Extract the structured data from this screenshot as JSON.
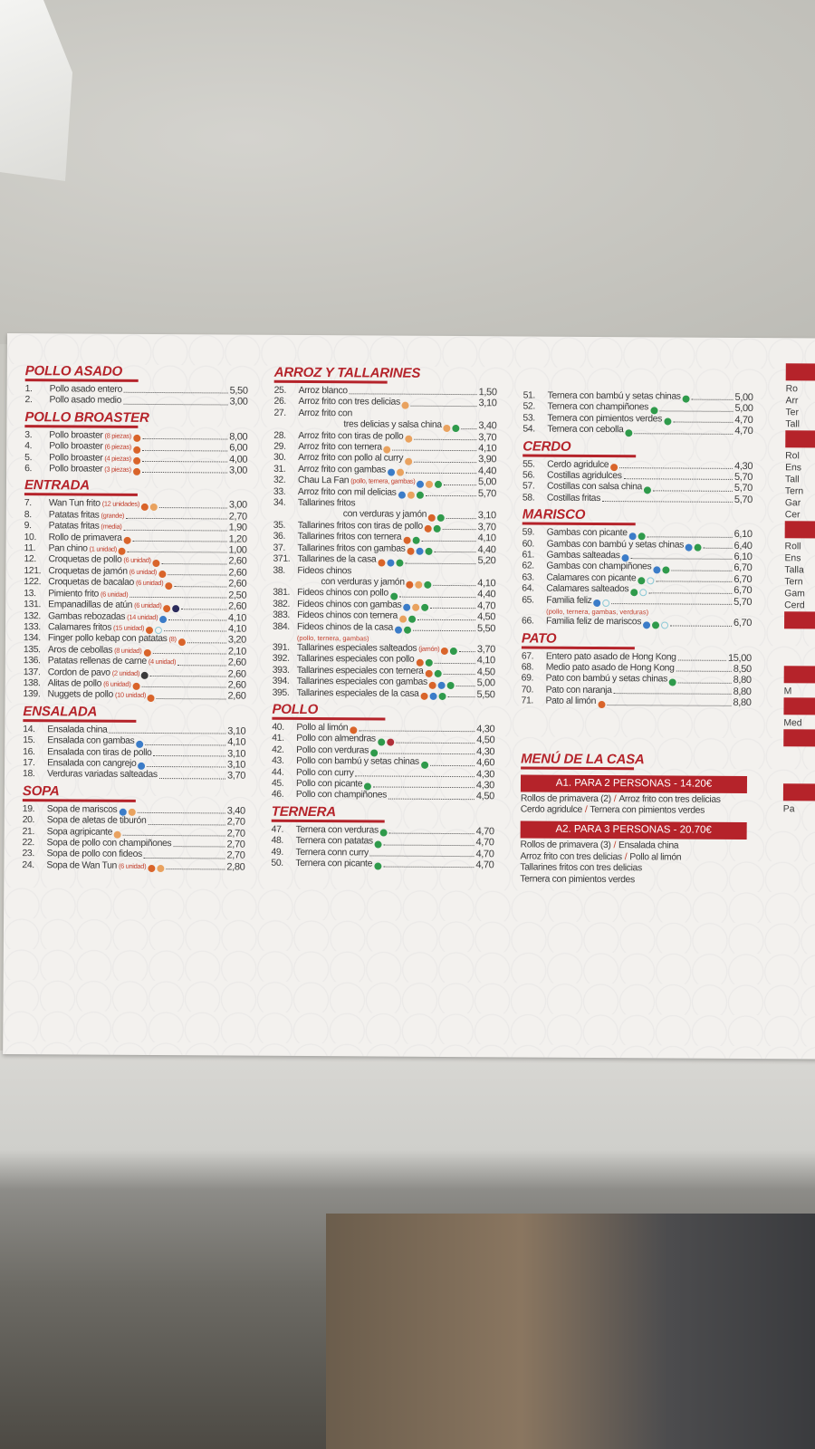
{
  "icon_colors": {
    "o": "#d9642a",
    "p": "#e9a25f",
    "g": "#2f9a4b",
    "b": "#3b7cc8",
    "l": "#8cc9d6",
    "d": "#2c2c5c",
    "r": "#b0303a",
    "k": "#3a3a3a"
  },
  "icon_names": {
    "o": "fried-icon",
    "p": "egg-icon",
    "g": "soy-icon",
    "b": "shellfish-icon",
    "l": "mollusc-icon",
    "d": "fish-icon",
    "r": "nuts-icon",
    "k": "mustard-icon"
  },
  "columns": [
    [
      {
        "title": "POLLO ASADO",
        "items": [
          {
            "num": "1.",
            "name": "Pollo asado entero",
            "price": "5,50"
          },
          {
            "num": "2.",
            "name": "Pollo asado medio",
            "price": "3,00"
          }
        ]
      },
      {
        "title": "POLLO BROASTER",
        "items": [
          {
            "num": "3.",
            "name": "Pollo broaster",
            "note": "(8 piezas)",
            "icons": [
              "o"
            ],
            "price": "8,00"
          },
          {
            "num": "4.",
            "name": "Pollo broaster",
            "note": "(6 piezas)",
            "icons": [
              "o"
            ],
            "price": "6,00"
          },
          {
            "num": "5.",
            "name": "Pollo broaster",
            "note": "(4 piezas)",
            "icons": [
              "o"
            ],
            "price": "4,00"
          },
          {
            "num": "6.",
            "name": "Pollo broaster",
            "note": "(3 piezas)",
            "icons": [
              "o"
            ],
            "price": "3,00"
          }
        ]
      },
      {
        "title": "ENTRADA",
        "items": [
          {
            "num": "7.",
            "name": "Wan Tun frito",
            "note": "(12 unidades)",
            "icons": [
              "o",
              "p"
            ],
            "price": "3,00"
          },
          {
            "num": "8.",
            "name": "Patatas fritas",
            "note": "(grande)",
            "price": "2,70"
          },
          {
            "num": "9.",
            "name": "Patatas fritas",
            "note": "(media)",
            "price": "1,90"
          },
          {
            "num": "10.",
            "name": "Rollo de primavera",
            "icons": [
              "o"
            ],
            "price": "1,20"
          },
          {
            "num": "11.",
            "name": "Pan chino",
            "note": "(1 unidad)",
            "icons": [
              "o"
            ],
            "price": "1,00"
          },
          {
            "num": "12.",
            "name": "Croquetas de pollo",
            "note": "(6 unidad)",
            "icons": [
              "o"
            ],
            "price": "2,60"
          },
          {
            "num": "121.",
            "name": "Croquetas de jamón",
            "note": "(6 unidad)",
            "icons": [
              "o"
            ],
            "price": "2,60"
          },
          {
            "num": "122.",
            "name": "Croquetas de bacalao",
            "note": "(6 unidad)",
            "icons": [
              "o"
            ],
            "price": "2,60"
          },
          {
            "num": "13.",
            "name": "Pimiento frito",
            "note": "(6 unidad)",
            "price": "2,50"
          },
          {
            "num": "131.",
            "name": "Empanadillas de atún",
            "note": "(6 unidad)",
            "icons": [
              "o",
              "d"
            ],
            "price": "2,60"
          },
          {
            "num": "132.",
            "name": "Gambas rebozadas",
            "note": "(14 unidad)",
            "icons": [
              "b"
            ],
            "price": "4,10"
          },
          {
            "num": "133.",
            "name": "Calamares fritos",
            "note": "(15 unidad)",
            "icons": [
              "o",
              "l"
            ],
            "price": "4,10"
          },
          {
            "num": "134.",
            "name": "Finger pollo kebap con patatas",
            "note": "(8)",
            "icons": [
              "o"
            ],
            "price": "3,20"
          },
          {
            "num": "135.",
            "name": "Aros de cebollas",
            "note": "(8 unidad)",
            "icons": [
              "o"
            ],
            "price": "2,10"
          },
          {
            "num": "136.",
            "name": "Patatas rellenas de carne",
            "note": "(4 unidad)",
            "price": "2,60"
          },
          {
            "num": "137.",
            "name": "Cordon de pavo",
            "note": "(2 unidad)",
            "icons": [
              "k"
            ],
            "price": "2,60"
          },
          {
            "num": "138.",
            "name": "Alitas de pollo",
            "note": "(6 unidad)",
            "icons": [
              "o"
            ],
            "price": "2,60"
          },
          {
            "num": "139.",
            "name": "Nuggets de pollo",
            "note": "(10 unidad)",
            "icons": [
              "o"
            ],
            "price": "2,60"
          }
        ]
      },
      {
        "title": "ENSALADA",
        "items": [
          {
            "num": "14.",
            "name": "Ensalada china",
            "price": "3,10"
          },
          {
            "num": "15.",
            "name": "Ensalada con gambas",
            "icons": [
              "b"
            ],
            "price": "4,10"
          },
          {
            "num": "16.",
            "name": "Ensalada con tiras de pollo",
            "price": "3,10"
          },
          {
            "num": "17.",
            "name": "Ensalada con cangrejo",
            "icons": [
              "b"
            ],
            "price": "3,10"
          },
          {
            "num": "18.",
            "name": "Verduras variadas salteadas",
            "price": "3,70"
          }
        ]
      },
      {
        "title": "SOPA",
        "items": [
          {
            "num": "19.",
            "name": "Sopa de mariscos",
            "icons": [
              "b",
              "p"
            ],
            "price": "3,40"
          },
          {
            "num": "20.",
            "name": "Sopa de aletas de tiburón",
            "price": "2,70"
          },
          {
            "num": "21.",
            "name": "Sopa agripicante",
            "icons": [
              "p"
            ],
            "price": "2,70"
          },
          {
            "num": "22.",
            "name": "Sopa de pollo con champiñones",
            "price": "2,70"
          },
          {
            "num": "23.",
            "name": "Sopa de pollo con fideos",
            "price": "2,70"
          },
          {
            "num": "24.",
            "name": "Sopa de Wan Tun",
            "note": "(6 unidad)",
            "icons": [
              "o",
              "p"
            ],
            "price": "2,80"
          }
        ]
      }
    ],
    [
      {
        "title": "ARROZ Y TALLARINES",
        "items": [
          {
            "num": "25.",
            "name": "Arroz blanco",
            "price": "1,50"
          },
          {
            "num": "26.",
            "name": "Arroz frito con tres delicias",
            "icons": [
              "p"
            ],
            "price": "3,10"
          },
          {
            "num": "27.",
            "name": "Arroz frito con"
          },
          {
            "cont": true,
            "name": "tres delicias y salsa china",
            "icons": [
              "p",
              "g"
            ],
            "price": "3,40",
            "indent": true
          },
          {
            "num": "28.",
            "name": "Arroz frito con tiras de pollo",
            "icons": [
              "p"
            ],
            "price": "3,70"
          },
          {
            "num": "29.",
            "name": "Arroz frito con ternera",
            "icons": [
              "p"
            ],
            "price": "4,10"
          },
          {
            "num": "30.",
            "name": "Arroz frito con pollo al curry",
            "icons": [
              "p"
            ],
            "price": "3,90"
          },
          {
            "num": "31.",
            "name": "Arroz frito con gambas",
            "icons": [
              "b",
              "p"
            ],
            "price": "4,40"
          },
          {
            "num": "32.",
            "name": "Chau La Fan",
            "note": "(pollo, ternera, gambas)",
            "icons": [
              "b",
              "p",
              "g"
            ],
            "price": "5,00"
          },
          {
            "num": "33.",
            "name": "Arroz frito con mil delicias",
            "icons": [
              "b",
              "p",
              "g"
            ],
            "price": "5,70"
          },
          {
            "num": "34.",
            "name": "Tallarines fritos"
          },
          {
            "cont": true,
            "name": "con verduras y jamón",
            "icons": [
              "o",
              "g"
            ],
            "price": "3,10",
            "indent": true
          },
          {
            "num": "35.",
            "name": "Tallarines fritos con tiras de pollo",
            "icons": [
              "o",
              "g"
            ],
            "price": "3,70"
          },
          {
            "num": "36.",
            "name": "Tallarines fritos con ternera",
            "icons": [
              "o",
              "g"
            ],
            "price": "4,10"
          },
          {
            "num": "37.",
            "name": "Tallarines fritos con gambas",
            "icons": [
              "o",
              "b",
              "g"
            ],
            "price": "4,40"
          },
          {
            "num": "371.",
            "name": "Tallarines de la casa",
            "icons": [
              "o",
              "b",
              "g"
            ],
            "price": "5,20"
          },
          {
            "num": "38.",
            "name": "Fideos chinos"
          },
          {
            "cont": true,
            "name": "con verduras y jamón",
            "icons": [
              "o",
              "p",
              "g"
            ],
            "price": "4,10"
          },
          {
            "num": "381.",
            "name": "Fideos chinos con pollo",
            "icons": [
              "g"
            ],
            "price": "4,40"
          },
          {
            "num": "382.",
            "name": "Fideos chinos con gambas",
            "icons": [
              "b",
              "p",
              "g"
            ],
            "price": "4,70"
          },
          {
            "num": "383.",
            "name": "Fideos chinos con ternera",
            "icons": [
              "p",
              "g"
            ],
            "price": "4,50"
          },
          {
            "num": "384.",
            "name": "Fideos chinos de la casa",
            "icons": [
              "b",
              "g"
            ],
            "price": "5,50",
            "subnote": "(pollo, ternera, gambas)"
          },
          {
            "num": "391.",
            "name": "Tallarines especiales salteados",
            "note": "(jamón)",
            "icons": [
              "o",
              "g"
            ],
            "price": "3,70"
          },
          {
            "num": "392.",
            "name": "Tallarines especiales con pollo",
            "icons": [
              "o",
              "g"
            ],
            "price": "4,10"
          },
          {
            "num": "393.",
            "name": "Tallarines especiales con ternera",
            "icons": [
              "o",
              "g"
            ],
            "price": "4,50"
          },
          {
            "num": "394.",
            "name": "Tallarines especiales con gambas",
            "icons": [
              "o",
              "b",
              "g"
            ],
            "price": "5,00"
          },
          {
            "num": "395.",
            "name": "Tallarines especiales de la casa",
            "icons": [
              "o",
              "b",
              "g"
            ],
            "price": "5,50"
          }
        ]
      },
      {
        "title": "POLLO",
        "items": [
          {
            "num": "40.",
            "name": "Pollo al limón",
            "icons": [
              "o"
            ],
            "price": "4,30"
          },
          {
            "num": "41.",
            "name": "Pollo con almendras",
            "icons": [
              "g",
              "r"
            ],
            "price": "4,50"
          },
          {
            "num": "42.",
            "name": "Pollo con verduras",
            "icons": [
              "g"
            ],
            "price": "4,30"
          },
          {
            "num": "43.",
            "name": "Pollo con bambú y setas chinas",
            "icons": [
              "g"
            ],
            "price": "4,60"
          },
          {
            "num": "44.",
            "name": "Pollo con curry",
            "price": "4,30"
          },
          {
            "num": "45.",
            "name": "Pollo con picante",
            "icons": [
              "g"
            ],
            "price": "4,30"
          },
          {
            "num": "46.",
            "name": "Pollo con champiñones",
            "price": "4,50"
          }
        ]
      },
      {
        "title": "TERNERA",
        "items": [
          {
            "num": "47.",
            "name": "Ternera con verduras",
            "icons": [
              "g"
            ],
            "price": "4,70"
          },
          {
            "num": "48.",
            "name": "Ternera con patatas",
            "icons": [
              "g"
            ],
            "price": "4,70"
          },
          {
            "num": "49.",
            "name": "Ternera conn curry",
            "price": "4,70"
          },
          {
            "num": "50.",
            "name": "Ternera con picante",
            "icons": [
              "g"
            ],
            "price": "4,70"
          }
        ]
      }
    ],
    [
      {
        "title": "",
        "items": [
          {
            "num": "51.",
            "name": "Ternera con bambú y setas chinas",
            "icons": [
              "g"
            ],
            "price": "5,00"
          },
          {
            "num": "52.",
            "name": "Ternera con champiñones",
            "icons": [
              "g"
            ],
            "price": "5,00"
          },
          {
            "num": "53.",
            "name": "Ternera con pimientos verdes",
            "icons": [
              "g"
            ],
            "price": "4,70"
          },
          {
            "num": "54.",
            "name": "Ternera con cebolla",
            "icons": [
              "g"
            ],
            "price": "4,70"
          }
        ]
      },
      {
        "title": "CERDO",
        "items": [
          {
            "num": "55.",
            "name": "Cerdo agridulce",
            "icons": [
              "o"
            ],
            "price": "4,30"
          },
          {
            "num": "56.",
            "name": "Costillas agridulces",
            "price": "5,70"
          },
          {
            "num": "57.",
            "name": "Costillas con salsa china",
            "icons": [
              "g"
            ],
            "price": "5,70"
          },
          {
            "num": "58.",
            "name": "Costillas fritas",
            "price": "5,70"
          }
        ]
      },
      {
        "title": "MARISCO",
        "items": [
          {
            "num": "59.",
            "name": "Gambas con picante",
            "icons": [
              "b",
              "g"
            ],
            "price": "6,10"
          },
          {
            "num": "60.",
            "name": "Gambas con bambú y setas chinas",
            "icons": [
              "b",
              "g"
            ],
            "price": "6,40"
          },
          {
            "num": "61.",
            "name": "Gambas salteadas",
            "icons": [
              "b"
            ],
            "price": "6,10"
          },
          {
            "num": "62.",
            "name": "Gambas con champiñones",
            "icons": [
              "b",
              "g"
            ],
            "price": "6,70"
          },
          {
            "num": "63.",
            "name": "Calamares con picante",
            "icons": [
              "g",
              "l"
            ],
            "price": "6,70"
          },
          {
            "num": "64.",
            "name": "Calamares salteados",
            "icons": [
              "g",
              "l"
            ],
            "price": "6,70"
          },
          {
            "num": "65.",
            "name": "Familia feliz",
            "icons": [
              "b",
              "l"
            ],
            "price": "5,70",
            "subnote": "(pollo, ternera, gambas, verduras)"
          },
          {
            "num": "66.",
            "name": "Familia feliz de mariscos",
            "icons": [
              "b",
              "g",
              "l"
            ],
            "price": "6,70"
          }
        ]
      },
      {
        "title": "PATO",
        "items": [
          {
            "num": "67.",
            "name": "Entero pato asado de Hong Kong",
            "price": "15,00"
          },
          {
            "num": "68.",
            "name": "Medio pato asado de Hong Kong",
            "price": "8,50"
          },
          {
            "num": "69.",
            "name": "Pato con bambú y setas chinas",
            "icons": [
              "g"
            ],
            "price": "8,80"
          },
          {
            "num": "70.",
            "name": "Pato con naranja",
            "price": "8,80"
          },
          {
            "num": "71.",
            "name": "Pato al limón",
            "icons": [
              "o"
            ],
            "price": "8,80"
          }
        ]
      }
    ]
  ],
  "house_menu": {
    "title": "MENÚ DE LA CASA",
    "combos": [
      {
        "label": "A1. PARA 2 PERSONAS - 14.20€",
        "lines": [
          [
            "Rollos de primavera (2)",
            "Arroz frito con tres delicias"
          ],
          [
            "Cerdo agridulce",
            "Ternera con pimientos verdes"
          ]
        ]
      },
      {
        "label": "A2. PARA 3 PERSONAS - 20.70€",
        "lines": [
          [
            "Rollos de primavera (3)",
            "Ensalada china"
          ],
          [
            "Arroz frito con tres delicias",
            "Pollo al limón"
          ],
          [
            "Tallarines fritos con tres delicias"
          ],
          [
            "Ternera con pimientos verdes"
          ]
        ]
      }
    ],
    "separator": "/"
  },
  "edge_fragments": [
    [
      "Ro",
      "Arr",
      "Ter",
      "Tall"
    ],
    [
      "Rol",
      "Ens",
      "Tall",
      "Tern",
      "Gar",
      "Cer"
    ],
    [
      "Roll",
      "Ens",
      "Talla",
      "Tern",
      "Gam",
      "Cerd"
    ],
    [],
    [
      "M"
    ],
    [
      "Med"
    ],
    [],
    [
      "Pa"
    ]
  ]
}
